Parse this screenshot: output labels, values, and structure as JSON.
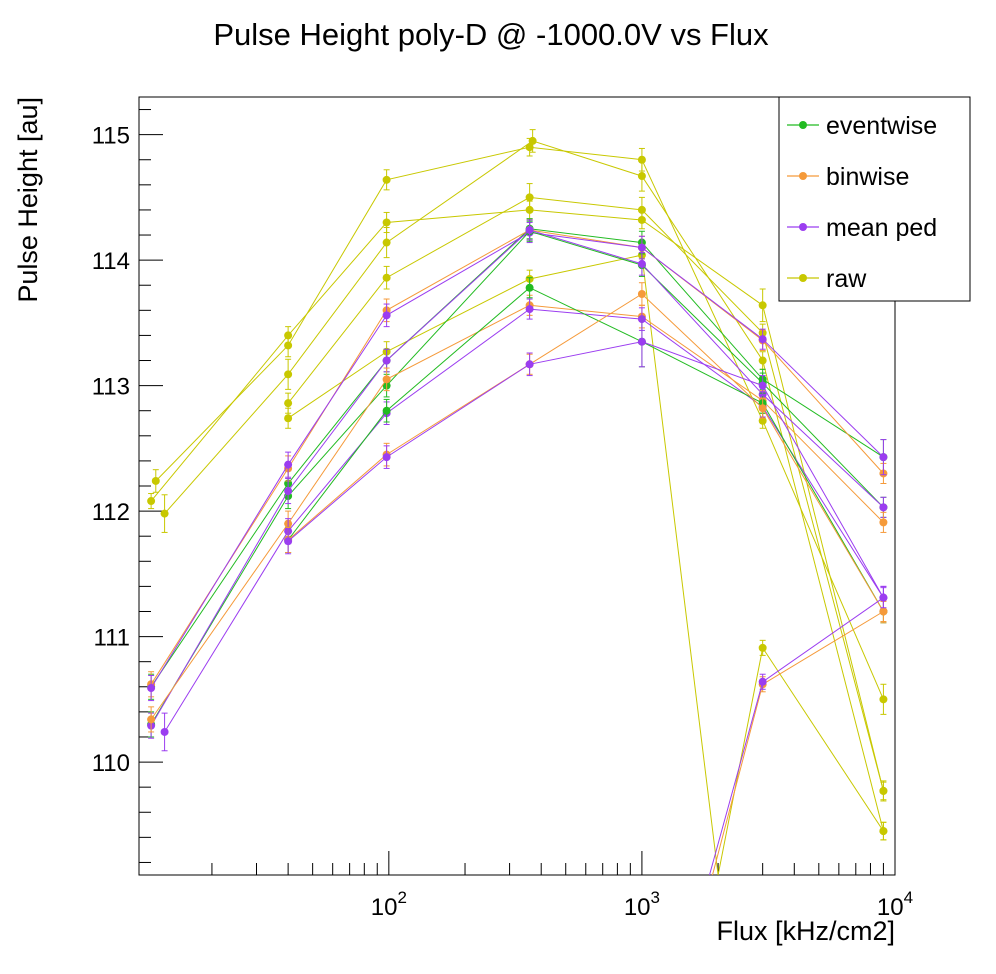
{
  "chart_data": {
    "type": "line",
    "title": "Pulse Height poly-D @ -1000.0V vs Flux",
    "xlabel": "Flux [kHz/cm2]",
    "ylabel": "Pulse Height [au]",
    "x_scale": "log",
    "xlim": [
      10.3,
      10000
    ],
    "ylim": [
      109.1,
      115.3
    ],
    "x_ticks": [
      {
        "value": 100,
        "base": "10",
        "exp": "2"
      },
      {
        "value": 1000,
        "base": "10",
        "exp": "3"
      },
      {
        "value": 10000,
        "base": "10",
        "exp": "4"
      }
    ],
    "y_ticks": [
      110,
      111,
      112,
      113,
      114,
      115
    ],
    "legend_position": "top-right",
    "legend": [
      {
        "label": "eventwise",
        "color": "#22bb22"
      },
      {
        "label": "binwise",
        "color": "#f59a3a"
      },
      {
        "label": "mean ped",
        "color": "#9b3df0"
      },
      {
        "label": "raw",
        "color": "#c8c800"
      }
    ],
    "series": [
      {
        "legend": "raw",
        "color": "#c8c800",
        "x": [
          11.5,
          40,
          98,
          360,
          1000,
          3000,
          9000
        ],
        "y": [
          112.08,
          113.4,
          114.3,
          114.4,
          114.32,
          113.64,
          109.77
        ],
        "err": [
          0.06,
          0.07,
          0.08,
          0.07,
          0.07,
          0.13,
          0.07
        ]
      },
      {
        "legend": "raw",
        "color": "#c8c800",
        "x": [
          12,
          40,
          98,
          360,
          1000,
          3000,
          9000
        ],
        "y": [
          112.24,
          113.32,
          114.64,
          114.9,
          114.8,
          112.72,
          110.5
        ],
        "err": [
          0.09,
          0.09,
          0.08,
          0.07,
          0.09,
          0.06,
          0.12
        ]
      },
      {
        "legend": "raw",
        "color": "#c8c800",
        "x": [
          13,
          40,
          98,
          370,
          1000,
          3000,
          9000
        ],
        "y": [
          111.98,
          113.09,
          114.14,
          114.95,
          114.67,
          113.2,
          109.45
        ],
        "err": [
          0.15,
          0.12,
          0.12,
          0.09,
          0.12,
          0.07,
          0.07
        ]
      },
      {
        "legend": "raw",
        "color": "#c8c800",
        "x": [
          40,
          98,
          360,
          1000,
          3000,
          9000
        ],
        "y": [
          112.86,
          113.86,
          114.5,
          114.4,
          113.42,
          109.77
        ],
        "err": [
          0.08,
          0.09,
          0.11,
          0.1,
          0.07,
          0.08
        ]
      },
      {
        "legend": "raw",
        "color": "#c8c800",
        "x": [
          40,
          98,
          360,
          1000,
          2000,
          3000,
          9000
        ],
        "y": [
          112.74,
          113.27,
          113.85,
          114.04,
          109.1,
          110.91,
          109.45
        ],
        "err": [
          0.08,
          0.08,
          0.07,
          0.08,
          0,
          0.06,
          0.07
        ]
      },
      {
        "legend": "eventwise",
        "color": "#22bb22",
        "x": [
          11.5,
          40,
          98,
          360,
          1000,
          3000,
          9000
        ],
        "y": [
          110.6,
          112.22,
          113.2,
          114.25,
          114.14,
          113.05,
          112.43
        ],
        "err": [
          0.1,
          0.1,
          0.09,
          0.08,
          0.09,
          0.08,
          0.14
        ]
      },
      {
        "legend": "binwise",
        "color": "#f59a3a",
        "x": [
          11.5,
          40,
          98,
          360,
          1000,
          3000,
          9000
        ],
        "y": [
          110.62,
          112.34,
          113.6,
          114.24,
          114.1,
          113.36,
          112.3
        ],
        "err": [
          0.1,
          0.1,
          0.09,
          0.08,
          0.09,
          0.08,
          0.08
        ]
      },
      {
        "legend": "mean ped",
        "color": "#9b3df0",
        "x": [
          11.5,
          40,
          98,
          360,
          1000,
          3000,
          9000
        ],
        "y": [
          110.59,
          112.37,
          113.56,
          114.22,
          114.1,
          113.37,
          112.43
        ],
        "err": [
          0.1,
          0.1,
          0.09,
          0.08,
          0.09,
          0.08,
          0.14
        ]
      },
      {
        "legend": "eventwise",
        "color": "#22bb22",
        "x": [
          11.5,
          40,
          98,
          360,
          1000,
          3000,
          9000
        ],
        "y": [
          110.3,
          112.12,
          113.0,
          114.23,
          113.96,
          113.02,
          112.03
        ],
        "err": [
          0.1,
          0.1,
          0.09,
          0.08,
          0.09,
          0.08,
          0.08
        ]
      },
      {
        "legend": "mean ped",
        "color": "#9b3df0",
        "x": [
          11.5,
          40,
          98,
          360,
          1000,
          3000,
          9000
        ],
        "y": [
          110.29,
          112.16,
          113.2,
          114.24,
          113.97,
          112.93,
          112.03
        ],
        "err": [
          0.1,
          0.1,
          0.09,
          0.08,
          0.09,
          0.08,
          0.08
        ]
      },
      {
        "legend": "binwise",
        "color": "#f59a3a",
        "x": [
          11.5,
          40,
          98,
          360,
          1000,
          3000,
          9000
        ],
        "y": [
          110.34,
          111.9,
          113.05,
          113.64,
          113.55,
          112.88,
          111.91
        ],
        "err": [
          0.1,
          0.1,
          0.09,
          0.08,
          0.09,
          0.08,
          0.08
        ]
      },
      {
        "legend": "mean ped",
        "color": "#9b3df0",
        "x": [
          13,
          40,
          98,
          360,
          1000,
          3000,
          9000
        ],
        "y": [
          110.24,
          111.84,
          112.78,
          113.61,
          113.53,
          112.83,
          111.31
        ],
        "err": [
          0.15,
          0.1,
          0.09,
          0.08,
          0.09,
          0.08,
          0.09
        ]
      },
      {
        "legend": "eventwise",
        "color": "#22bb22",
        "x": [
          40,
          98,
          360,
          1000,
          3000,
          9000
        ],
        "y": [
          111.77,
          112.8,
          113.78,
          113.35,
          112.86,
          111.2
        ],
        "err": [
          0.1,
          0.09,
          0.08,
          0.2,
          0.08,
          0.09
        ]
      },
      {
        "legend": "binwise",
        "color": "#f59a3a",
        "x": [
          40,
          98,
          360,
          1000,
          3000,
          9000
        ],
        "y": [
          111.77,
          112.45,
          113.17,
          113.73,
          112.82,
          111.2
        ],
        "err": [
          0.1,
          0.09,
          0.08,
          0.09,
          0.08,
          0.09
        ]
      },
      {
        "legend": "mean ped",
        "color": "#9b3df0",
        "x": [
          40,
          98,
          360,
          1000,
          3000,
          9000
        ],
        "y": [
          111.76,
          112.43,
          113.17,
          113.35,
          113.0,
          111.31
        ],
        "err": [
          0.1,
          0.09,
          0.09,
          0.2,
          0.08,
          0.09
        ]
      },
      {
        "legend": "binwise",
        "color": "#f59a3a",
        "x": [
          1900,
          3000,
          9000
        ],
        "y": [
          109.1,
          110.62,
          111.2
        ],
        "err": [
          0,
          0.06,
          0.08
        ]
      },
      {
        "legend": "mean ped",
        "color": "#9b3df0",
        "x": [
          1850,
          3000,
          9000
        ],
        "y": [
          109.1,
          110.64,
          111.31
        ],
        "err": [
          0,
          0.06,
          0.08
        ]
      }
    ]
  }
}
